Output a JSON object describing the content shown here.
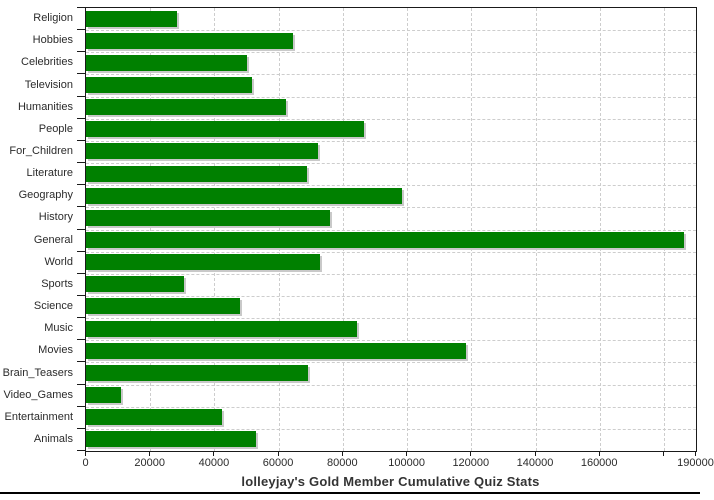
{
  "chart_data": {
    "type": "bar",
    "orientation": "horizontal",
    "title": "lolleyjay's Gold Member Cumulative Quiz Stats",
    "xlabel": "",
    "ylabel": "",
    "xlim": [
      0,
      190000
    ],
    "categories": [
      "Religion",
      "Hobbies",
      "Celebrities",
      "Television",
      "Humanities",
      "People",
      "For_Children",
      "Literature",
      "Geography",
      "History",
      "General",
      "World",
      "Sports",
      "Science",
      "Music",
      "Movies",
      "Brain_Teasers",
      "Video_Games",
      "Entertainment",
      "Animals"
    ],
    "values": [
      28300,
      64400,
      50200,
      51600,
      62200,
      86700,
      72100,
      68800,
      98400,
      75900,
      186200,
      72800,
      30400,
      48100,
      84400,
      118400,
      69000,
      10800,
      42400,
      52800
    ],
    "x_ticks": [
      0,
      20000,
      40000,
      60000,
      80000,
      100000,
      120000,
      140000,
      160000,
      180000,
      190000
    ],
    "x_tick_labels": [
      "0",
      "20000",
      "40000",
      "60000",
      "80000",
      "100000",
      "120000",
      "140000",
      "160000",
      "",
      "190000"
    ],
    "grid": "dashed",
    "legend": "none",
    "colors": {
      "bar": "#008000",
      "bar_shadow": "#c9c9c9",
      "gridline": "#cdcdcd",
      "axis": "#1a1a1a",
      "tick_text": "#2b2b2b",
      "title_text": "#333333",
      "background": "#ffffff"
    }
  }
}
